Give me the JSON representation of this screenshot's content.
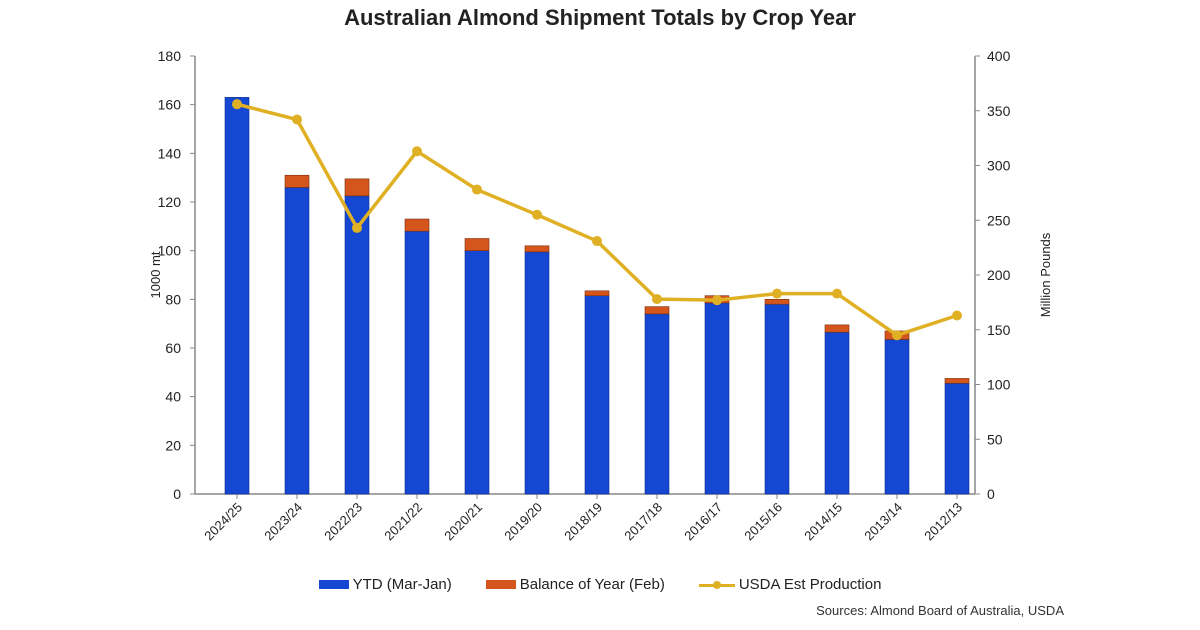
{
  "chart_data": {
    "type": "bar",
    "stacked": true,
    "title": "Australian Almond Shipment Totals by Crop Year",
    "categories": [
      "2024/25",
      "2023/24",
      "2022/23",
      "2021/22",
      "2020/21",
      "2019/20",
      "2018/19",
      "2017/18",
      "2016/17",
      "2015/16",
      "2014/15",
      "2013/14",
      "2012/13"
    ],
    "ylabel": "1000 mt",
    "y2label": "Million Pounds",
    "ylim": [
      0,
      180
    ],
    "y2lim": [
      0,
      400
    ],
    "yticks": [
      0,
      20,
      40,
      60,
      80,
      100,
      120,
      140,
      160,
      180
    ],
    "y2ticks": [
      0,
      50,
      100,
      150,
      200,
      250,
      300,
      350,
      400
    ],
    "grid": false,
    "legend_position": "bottom",
    "series": [
      {
        "name": "YTD (Mar-Jan)",
        "type": "bar",
        "axis": "left",
        "color": "#1448d2",
        "values": [
          163,
          126,
          122.5,
          108,
          100,
          99.5,
          81.5,
          74,
          78.5,
          78,
          66.5,
          63.5,
          45.5
        ]
      },
      {
        "name": "Balance of Year (Feb)",
        "type": "bar",
        "axis": "left",
        "color": "#d4561c",
        "values": [
          0,
          5,
          7,
          5,
          5,
          2.5,
          2,
          3,
          3,
          2,
          3,
          3.5,
          2
        ]
      },
      {
        "name": "USDA Est Production",
        "type": "line",
        "axis": "right",
        "color": "#e0b024",
        "values": [
          356,
          342,
          243,
          313,
          278,
          255,
          231,
          178,
          177,
          183,
          183,
          145,
          163
        ]
      }
    ],
    "source": "Sources: Almond Board of Australia, USDA"
  }
}
